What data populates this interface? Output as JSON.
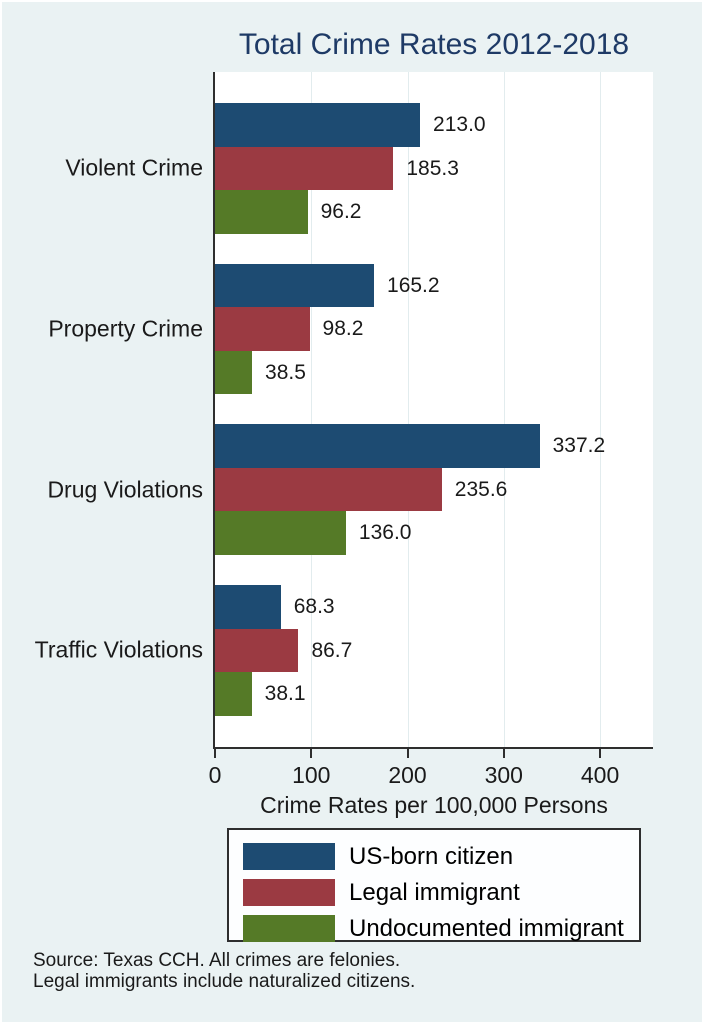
{
  "page": {
    "background_color": "#eaf2f3",
    "plot_background_color": "#ffffff",
    "title_color": "#1e3a66",
    "notes": [
      "Source: Texas CCH. All crimes are felonies.",
      "Legal immigrants include naturalized citizens."
    ]
  },
  "chart_data": {
    "type": "bar",
    "orientation": "horizontal",
    "title": "Total Crime Rates 2012-2018",
    "xlabel": "Crime Rates per 100,000 Persons",
    "categories": [
      "Violent Crime",
      "Property Crime",
      "Drug Violations",
      "Traffic Violations"
    ],
    "series": [
      {
        "name": "US-born citizen",
        "color": "#1d4b72",
        "values": [
          213.0,
          165.2,
          337.2,
          68.3
        ]
      },
      {
        "name": "Legal immigrant",
        "color": "#9b3a42",
        "values": [
          185.3,
          98.2,
          235.6,
          86.7
        ]
      },
      {
        "name": "Undocumented immigrant",
        "color": "#557a27",
        "values": [
          96.2,
          38.5,
          136.0,
          38.1
        ]
      }
    ],
    "value_label_decimals": 1,
    "x_ticks": [
      0,
      100,
      200,
      300,
      400
    ],
    "xlim": [
      0,
      455
    ],
    "grid": true,
    "legend_position": "bottom"
  }
}
